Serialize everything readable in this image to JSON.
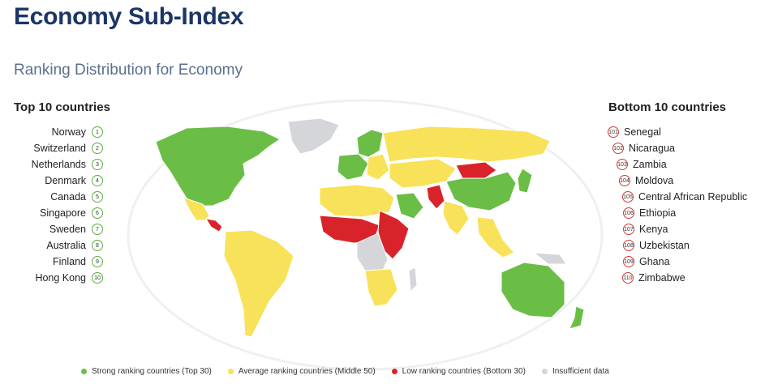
{
  "title": "Economy Sub-Index",
  "subtitle": "Ranking Distribution for Economy",
  "colors": {
    "strong": "#6abe45",
    "average": "#f7e25a",
    "low": "#d8232a",
    "insufficient": "#d4d6da",
    "title": "#1b3566"
  },
  "top10": {
    "heading": "Top 10 countries",
    "items": [
      {
        "rank": "1",
        "name": "Norway"
      },
      {
        "rank": "2",
        "name": "Switzerland"
      },
      {
        "rank": "3",
        "name": "Netherlands"
      },
      {
        "rank": "4",
        "name": "Denmark"
      },
      {
        "rank": "5",
        "name": "Canada"
      },
      {
        "rank": "6",
        "name": "Singapore"
      },
      {
        "rank": "7",
        "name": "Sweden"
      },
      {
        "rank": "8",
        "name": "Australia"
      },
      {
        "rank": "9",
        "name": "Finland"
      },
      {
        "rank": "10",
        "name": "Hong Kong"
      }
    ]
  },
  "bottom10": {
    "heading": "Bottom 10 countries",
    "items": [
      {
        "rank": "101",
        "name": "Senegal"
      },
      {
        "rank": "102",
        "name": "Nicaragua"
      },
      {
        "rank": "103",
        "name": "Zambia"
      },
      {
        "rank": "104",
        "name": "Moldova"
      },
      {
        "rank": "105",
        "name": "Central African Republic"
      },
      {
        "rank": "106",
        "name": "Ethiopia"
      },
      {
        "rank": "107",
        "name": "Kenya"
      },
      {
        "rank": "108",
        "name": "Uzbekistan"
      },
      {
        "rank": "109",
        "name": "Ghana"
      },
      {
        "rank": "110",
        "name": "Zimbabwe"
      }
    ]
  },
  "legend": [
    {
      "label": "Strong ranking countries (Top 30)",
      "color": "#6abe45"
    },
    {
      "label": "Average ranking countries (Middle 50)",
      "color": "#f7e25a"
    },
    {
      "label": "Low ranking countries (Bottom 30)",
      "color": "#d8232a"
    },
    {
      "label": "Insufficient data",
      "color": "#d4d6da"
    }
  ]
}
